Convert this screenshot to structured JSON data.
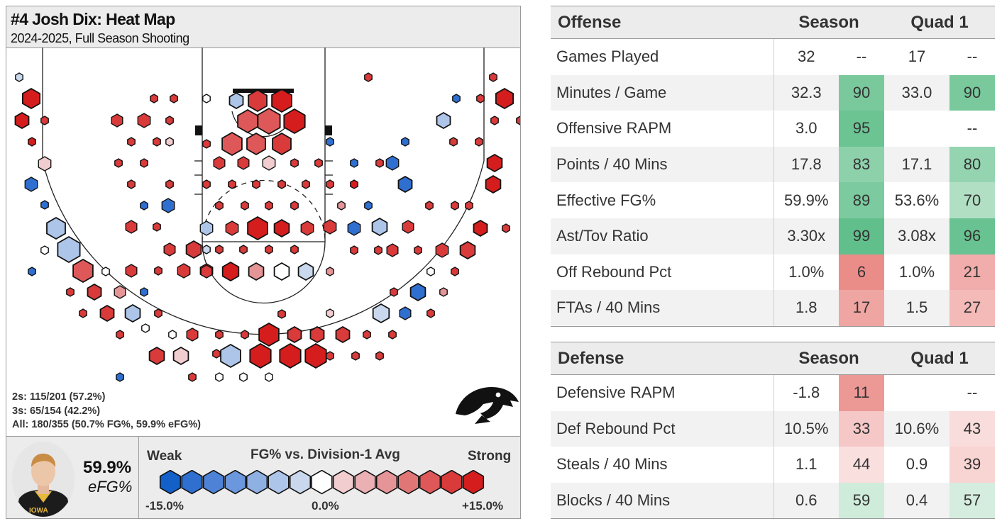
{
  "title": "#4 Josh Dix: Heat Map",
  "subtitle": "2024-2025, Full Season Shooting",
  "summary": {
    "twos": "2s: 115/201 (57.2%)",
    "threes": "3s: 65/154 (42.2%)",
    "all": "All: 180/355 (50.7% FG%, 59.9% eFG%)"
  },
  "efg": {
    "value": "59.9%",
    "label": "eFG%"
  },
  "legend": {
    "title": "FG% vs. Division-1 Avg",
    "weak": "Weak",
    "strong": "Strong",
    "ticks": [
      "-15.0%",
      "0.0%",
      "+15.0%"
    ],
    "colors": [
      "#1260c8",
      "#2f6fd0",
      "#4d82d7",
      "#6b97de",
      "#8fb0e3",
      "#adc5e8",
      "#c9d8ec",
      "#ffffff",
      "#f1cdcf",
      "#eab0b3",
      "#e59597",
      "#e17677",
      "#de5859",
      "#d93a3a",
      "#d51d1d"
    ]
  },
  "logo": "iowa-hawkeye-logo",
  "chart_data": {
    "type": "heatmap",
    "title": "#4 Josh Dix: Heat Map",
    "value_scale": {
      "min": -15.0,
      "max": 15.0,
      "unit": "FG% vs. Division-1 Avg"
    }
  },
  "offense": {
    "header": [
      "Offense",
      "Season",
      "Quad 1"
    ],
    "rows": [
      {
        "label": "Games Played",
        "season": "32",
        "season_pct": "--",
        "q1": "17",
        "q1_pct": "--"
      },
      {
        "label": "Minutes / Game",
        "season": "32.3",
        "season_pct": "90",
        "q1": "33.0",
        "q1_pct": "90"
      },
      {
        "label": "Offensive RAPM",
        "season": "3.0",
        "season_pct": "95",
        "q1": "",
        "q1_pct": "--"
      },
      {
        "label": "Points / 40 Mins",
        "season": "17.8",
        "season_pct": "83",
        "q1": "17.1",
        "q1_pct": "80"
      },
      {
        "label": "Effective FG%",
        "season": "59.9%",
        "season_pct": "89",
        "q1": "53.6%",
        "q1_pct": "70"
      },
      {
        "label": "Ast/Tov Ratio",
        "season": "3.30x",
        "season_pct": "99",
        "q1": "3.08x",
        "q1_pct": "96"
      },
      {
        "label": "Off Rebound Pct",
        "season": "1.0%",
        "season_pct": "6",
        "q1": "1.0%",
        "q1_pct": "21"
      },
      {
        "label": "FTAs / 40 Mins",
        "season": "1.8",
        "season_pct": "17",
        "q1": "1.5",
        "q1_pct": "27"
      }
    ]
  },
  "defense": {
    "header": [
      "Defense",
      "Season",
      "Quad 1"
    ],
    "rows": [
      {
        "label": "Defensive RAPM",
        "season": "-1.8",
        "season_pct": "11",
        "q1": "",
        "q1_pct": "--"
      },
      {
        "label": "Def Rebound Pct",
        "season": "10.5%",
        "season_pct": "33",
        "q1": "10.6%",
        "q1_pct": "43"
      },
      {
        "label": "Steals / 40 Mins",
        "season": "1.1",
        "season_pct": "44",
        "q1": "0.9",
        "q1_pct": "39"
      },
      {
        "label": "Blocks / 40 Mins",
        "season": "0.6",
        "season_pct": "59",
        "q1": "0.4",
        "q1_pct": "57"
      }
    ]
  }
}
